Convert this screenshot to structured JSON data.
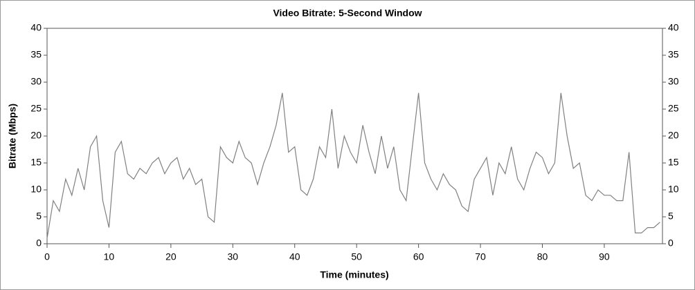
{
  "chart_data": {
    "type": "line",
    "title": "Video Bitrate: 5-Second Window",
    "x_label": "Time (minutes)",
    "y_label": "Bitrate (Mbps)",
    "xlim": [
      0,
      99.4
    ],
    "xticks": [
      0,
      10,
      20,
      30,
      40,
      50,
      60,
      70,
      80,
      90
    ],
    "ylim": [
      0,
      40
    ],
    "yticks": [
      0,
      5,
      10,
      15,
      20,
      25,
      30,
      35,
      40
    ],
    "y2lim": [
      0,
      40
    ],
    "y2ticks": [
      0,
      5,
      10,
      15,
      20,
      25,
      30,
      35,
      40
    ],
    "grid": false,
    "series": [
      {
        "color": "#808080",
        "x": [
          0,
          1,
          2,
          3,
          4,
          5,
          6,
          7,
          8,
          9,
          10,
          11,
          12,
          13,
          14,
          15,
          16,
          17,
          18,
          19,
          20,
          21,
          22,
          23,
          24,
          25,
          26,
          27,
          28,
          29,
          30,
          31,
          32,
          33,
          34,
          35,
          36,
          37,
          38,
          39,
          40,
          41,
          42,
          43,
          44,
          45,
          46,
          47,
          48,
          49,
          50,
          51,
          52,
          53,
          54,
          55,
          56,
          57,
          58,
          59,
          60,
          61,
          62,
          63,
          64,
          65,
          66,
          67,
          68,
          69,
          70,
          71,
          72,
          73,
          74,
          75,
          76,
          77,
          78,
          79,
          80,
          81,
          82,
          83,
          84,
          85,
          86,
          87,
          88,
          89,
          90,
          91,
          92,
          93,
          94,
          95,
          96,
          97,
          98,
          99
        ],
        "values": [
          1,
          8,
          6,
          12,
          9,
          14,
          10,
          18,
          20,
          8,
          3,
          17,
          19,
          13,
          12,
          14,
          13,
          15,
          16,
          13,
          15,
          16,
          12,
          14,
          11,
          12,
          5,
          4,
          18,
          16,
          15,
          19,
          16,
          15,
          11,
          15,
          18,
          22,
          28,
          17,
          18,
          10,
          9,
          12,
          18,
          16,
          25,
          14,
          20,
          17,
          15,
          22,
          17,
          13,
          20,
          14,
          18,
          10,
          8,
          18,
          28,
          15,
          12,
          10,
          13,
          11,
          10,
          7,
          6,
          12,
          14,
          16,
          9,
          15,
          13,
          18,
          12,
          10,
          14,
          17,
          16,
          13,
          15,
          28,
          20,
          14,
          15,
          9,
          8,
          10,
          9,
          9,
          8,
          8,
          17,
          2,
          2,
          3,
          3,
          4
        ]
      }
    ]
  }
}
